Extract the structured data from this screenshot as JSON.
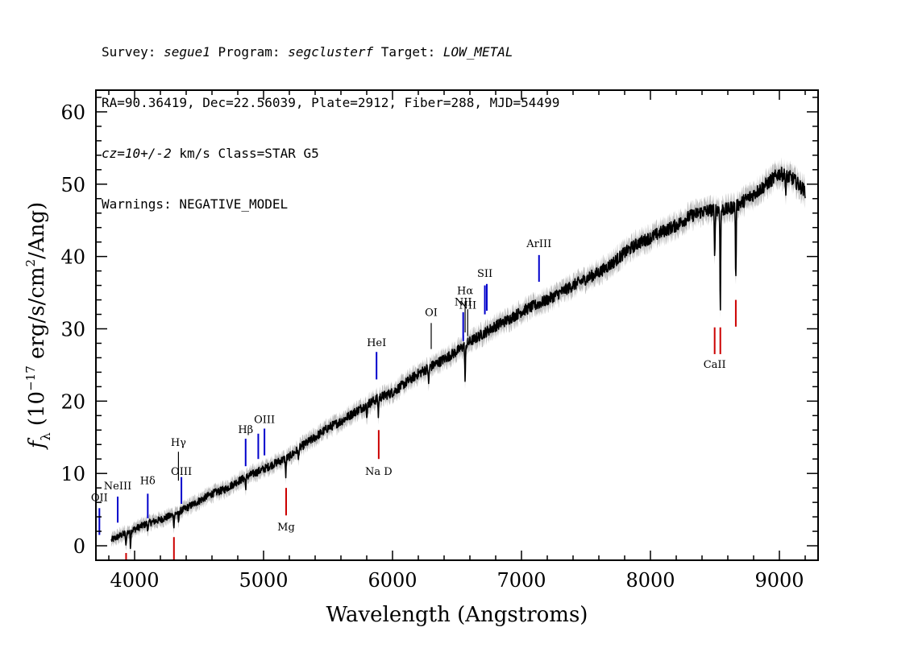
{
  "header": {
    "line1": {
      "survey_prefix": "Survey: ",
      "survey": "segue1",
      "program_prefix": " Program: ",
      "program": "segclusterf",
      "target_prefix": " Target: ",
      "target": "LOW_METAL"
    },
    "line2": "RA=90.36419, Dec=22.56039, Plate=2912, Fiber=288, MJD=54499",
    "line3": {
      "cz": "cz=10+/-2",
      "rest": " km/s Class=STAR G5"
    },
    "line4": "Warnings: NEGATIVE_MODEL"
  },
  "chart_data": {
    "type": "line",
    "xlabel": "Wavelength (Angstroms)",
    "ylabel_parts": {
      "f": "f",
      "sub": "λ",
      "pre": " (10",
      "exp": "−17",
      "mid": " erg/s/cm",
      "exp2": "2",
      "post": "/Ang)"
    },
    "xlim": [
      3700,
      9300
    ],
    "ylim": [
      -2,
      63
    ],
    "xticks": [
      4000,
      5000,
      6000,
      7000,
      8000,
      9000
    ],
    "yticks": [
      0,
      10,
      20,
      30,
      40,
      50,
      60
    ],
    "series": [
      {
        "color": "#000000",
        "error_color": "#b0b0b0",
        "x": [
          3820,
          3900,
          4000,
          4100,
          4200,
          4300,
          4400,
          4500,
          4600,
          4700,
          4800,
          4900,
          5000,
          5100,
          5200,
          5300,
          5400,
          5500,
          5600,
          5700,
          5800,
          5900,
          6000,
          6100,
          6200,
          6300,
          6400,
          6500,
          6600,
          6700,
          6800,
          6900,
          7000,
          7100,
          7200,
          7300,
          7400,
          7500,
          7600,
          7700,
          7800,
          7900,
          8000,
          8100,
          8200,
          8300,
          8400,
          8500,
          8600,
          8700,
          8800,
          8900,
          9000,
          9100,
          9200
        ],
        "y": [
          0.8,
          1.5,
          2.3,
          3.1,
          3.6,
          4.3,
          5.2,
          6.2,
          7.2,
          7.8,
          8.9,
          9.8,
          10.6,
          11.5,
          12.3,
          13.8,
          15.0,
          16.3,
          17.2,
          18.4,
          19.5,
          20.5,
          21.2,
          22.5,
          23.8,
          24.8,
          25.8,
          26.9,
          28.2,
          29.3,
          30.4,
          31.3,
          32.4,
          33.2,
          34.0,
          35.0,
          36.0,
          36.9,
          37.8,
          39.0,
          40.5,
          41.8,
          42.6,
          43.5,
          44.3,
          45.5,
          46.2,
          46.5,
          46.5,
          47.4,
          48.6,
          50.0,
          51.5,
          50.8,
          49.0
        ]
      }
    ],
    "absorption_features": [
      {
        "x": 3933,
        "depth": 2.0
      },
      {
        "x": 3968,
        "depth": 2.0
      },
      {
        "x": 4101,
        "depth": 1.0
      },
      {
        "x": 4305,
        "depth": 1.5
      },
      {
        "x": 4340,
        "depth": 1.5
      },
      {
        "x": 4861,
        "depth": 1.4
      },
      {
        "x": 5172,
        "depth": 2.3
      },
      {
        "x": 5270,
        "depth": 1.4
      },
      {
        "x": 5800,
        "depth": 2.0
      },
      {
        "x": 5890,
        "depth": 2.3
      },
      {
        "x": 6280,
        "depth": 2.4
      },
      {
        "x": 6563,
        "depth": 5.0
      },
      {
        "x": 8498,
        "depth": 7.0
      },
      {
        "x": 8542,
        "depth": 13.5
      },
      {
        "x": 8662,
        "depth": 10.5
      },
      {
        "x": 9050,
        "depth": 2.5
      }
    ],
    "line_markers": [
      {
        "label": "OII",
        "x": 3727,
        "y0": 1.5,
        "y1": 5.2,
        "color": "#0000cc",
        "label_y": 6.2
      },
      {
        "label": "NeIII",
        "x": 3869,
        "y0": 3.2,
        "y1": 6.8,
        "color": "#0000cc",
        "label_y": 7.8
      },
      {
        "label": "Hδ",
        "x": 4102,
        "y0": 3.8,
        "y1": 7.2,
        "color": "#0000cc",
        "label_y": 8.5
      },
      {
        "label": "Hγ",
        "x": 4340,
        "y0": 9.0,
        "y1": 13.0,
        "color": "#000000",
        "label_y": 13.8,
        "thin": true
      },
      {
        "label": "OIII",
        "x": 4363,
        "y0": 5.8,
        "y1": 9.5,
        "color": "#0000cc",
        "label_y": 9.8
      },
      {
        "label": "Hβ",
        "x": 4861,
        "y0": 11.0,
        "y1": 14.8,
        "color": "#0000cc",
        "label_y": 15.6
      },
      {
        "label": "",
        "x": 4959,
        "y0": 12.0,
        "y1": 15.5,
        "color": "#0000cc"
      },
      {
        "label": "OIII",
        "x": 5007,
        "y0": 12.5,
        "y1": 16.2,
        "color": "#0000cc",
        "label_y": 17.0
      },
      {
        "label": "Mg",
        "x": 5175,
        "y0": 4.2,
        "y1": 8.0,
        "color": "#cc0000",
        "label_y": 2.1
      },
      {
        "label": "HeI",
        "x": 5876,
        "y0": 23.0,
        "y1": 26.8,
        "color": "#0000cc",
        "label_y": 27.6
      },
      {
        "label": "Na D",
        "x": 5893,
        "y0": 12.0,
        "y1": 16.0,
        "color": "#cc0000",
        "label_y": 9.8
      },
      {
        "label": "OI",
        "x": 6300,
        "y0": 27.2,
        "y1": 30.8,
        "color": "#000000",
        "label_y": 31.8,
        "thin": true
      },
      {
        "label": "NII",
        "x": 6548,
        "y0": 28.3,
        "y1": 32.3,
        "color": "#0000cc",
        "label_y": 33.2
      },
      {
        "label": "Hα",
        "x": 6563,
        "y0": 29.5,
        "y1": 33.8,
        "color": "#000000",
        "label_y": 34.8,
        "thin": true
      },
      {
        "label": "NII",
        "x": 6583,
        "y0": 29.0,
        "y1": 32.7,
        "color": "#000000",
        "label_y": 32.8,
        "thin": true
      },
      {
        "label": "SII",
        "x": 6716,
        "y0": 32.0,
        "y1": 36.0,
        "color": "#0000cc",
        "label_y": 37.2
      },
      {
        "label": "",
        "x": 6731,
        "y0": 32.5,
        "y1": 36.2,
        "color": "#0000cc"
      },
      {
        "label": "ArIII",
        "x": 7136,
        "y0": 36.5,
        "y1": 40.2,
        "color": "#0000cc",
        "label_y": 41.3
      },
      {
        "label": "",
        "x": 3934,
        "y0": -2.0,
        "y1": -1.0,
        "color": "#cc0000"
      },
      {
        "label": "",
        "x": 4305,
        "y0": -2.0,
        "y1": 1.2,
        "color": "#cc0000"
      },
      {
        "label": "CaII",
        "x": 8498,
        "y0": 26.5,
        "y1": 30.2,
        "color": "#cc0000",
        "label_y": 24.6
      },
      {
        "label": "",
        "x": 8542,
        "y0": 26.5,
        "y1": 30.2,
        "color": "#cc0000"
      },
      {
        "label": "",
        "x": 8662,
        "y0": 30.3,
        "y1": 34.0,
        "color": "#cc0000"
      }
    ]
  }
}
